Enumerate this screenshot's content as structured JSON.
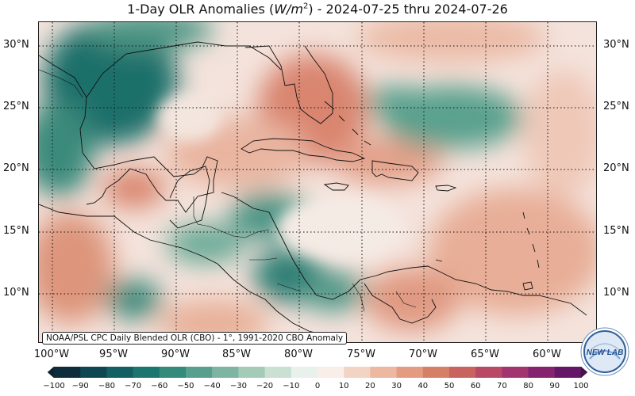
{
  "title": {
    "prefix": "1-Day OLR Anomalies (",
    "unit_base": "W/m",
    "unit_exp": "2",
    "suffix": ") - 2024-07-25 thru 2024-07-26"
  },
  "credit": "NOAA/PSL CPC Daily Blended OLR (CBO) - 1°, 1991-2020 CBO Anomaly",
  "logo_text": "NEW LAB",
  "lat_labels": [
    "30°N",
    "25°N",
    "20°N",
    "15°N",
    "10°N"
  ],
  "lon_labels": [
    "100°W",
    "95°W",
    "90°W",
    "85°W",
    "80°W",
    "75°W",
    "70°W",
    "65°W",
    "60°W"
  ],
  "colorbar": {
    "ticks": [
      "−100",
      "−90",
      "−80",
      "−70",
      "−60",
      "−50",
      "−40",
      "−30",
      "−20",
      "−10",
      "0",
      "10",
      "20",
      "30",
      "40",
      "50",
      "60",
      "70",
      "80",
      "90",
      "100"
    ],
    "colors": [
      "#0d2d3d",
      "#0f4653",
      "#135f63",
      "#1c766f",
      "#348a7b",
      "#58a08d",
      "#7db5a2",
      "#a4cbb8",
      "#c9e0d3",
      "#e8f1ec",
      "#f9eee8",
      "#f3d4c4",
      "#ecb8a2",
      "#e39b82",
      "#d67f67",
      "#c86360",
      "#b84a66",
      "#a23570",
      "#85236f",
      "#651767"
    ]
  },
  "map": {
    "lon_range": [
      -101.5,
      -57.5
    ],
    "lat_range": [
      6,
      32
    ],
    "gridlines": true,
    "anomaly_areas": [
      {
        "region": "Texas / NW Gulf",
        "anomaly": -75
      },
      {
        "region": "S Texas coast",
        "anomaly": -50
      },
      {
        "region": "Florida",
        "anomaly": 30
      },
      {
        "region": "Central Gulf",
        "anomaly": 20
      },
      {
        "region": "Atlantic NE of Bahamas",
        "anomaly": -45
      },
      {
        "region": "Bahamas",
        "anomaly": 25
      },
      {
        "region": "Southern Mexico",
        "anomaly": 30
      },
      {
        "region": "Honduras / Nicaragua",
        "anomaly": -55
      },
      {
        "region": "Panama",
        "anomaly": -55
      },
      {
        "region": "Eastern Pacific",
        "anomaly": 35
      },
      {
        "region": "Pacific near 10N 96W",
        "anomaly": -45
      },
      {
        "region": "Lesser Antilles",
        "anomaly": 25
      },
      {
        "region": "Venezuela",
        "anomaly": 20
      }
    ]
  }
}
